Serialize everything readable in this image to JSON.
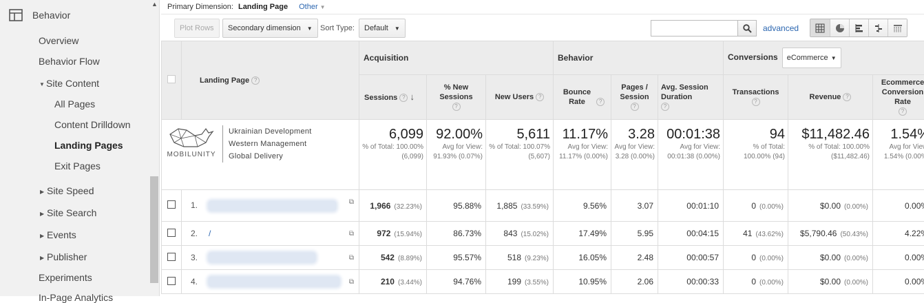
{
  "sidebar": {
    "section_title": "Behavior",
    "section_icon": "layout-icon",
    "items": [
      {
        "label": "Overview"
      },
      {
        "label": "Behavior Flow"
      },
      {
        "label": "Site Content"
      },
      {
        "label": "All Pages"
      },
      {
        "label": "Content Drilldown"
      },
      {
        "label": "Landing Pages"
      },
      {
        "label": "Exit Pages"
      },
      {
        "label": "Site Speed"
      },
      {
        "label": "Site Search"
      },
      {
        "label": "Events"
      },
      {
        "label": "Publisher"
      },
      {
        "label": "Experiments"
      },
      {
        "label": "In-Page Analytics"
      }
    ]
  },
  "primary_dimension": {
    "label": "Primary Dimension:",
    "value": "Landing Page",
    "other": "Other"
  },
  "toolbar": {
    "plot_rows": "Plot Rows",
    "secondary_dimension": "Secondary dimension",
    "sort_type_label": "Sort Type:",
    "sort_type_value": "Default",
    "search_placeholder": "",
    "advanced": "advanced",
    "view_icons": [
      "table-icon",
      "pie-icon",
      "bar-icon",
      "comparison-icon",
      "pivot-icon"
    ]
  },
  "table": {
    "groups": {
      "acquisition": "Acquisition",
      "behavior": "Behavior",
      "conversions": "Conversions",
      "conversion_select": "eCommerce"
    },
    "headers": {
      "landing_page": "Landing Page",
      "sessions": "Sessions",
      "new_sessions": "% New Sessions",
      "new_users": "New Users",
      "bounce": "Bounce Rate",
      "pages": "Pages / Session",
      "duration": "Avg. Session Duration",
      "transactions": "Transactions",
      "revenue": "Revenue",
      "ecom_rate": "Ecommerce Conversion Rate"
    },
    "logo": {
      "wordmark": "MOBILUNITY",
      "lines": [
        "Ukrainian Development",
        "Western Management",
        "Global Delivery"
      ]
    },
    "totals": {
      "sessions": {
        "value": "6,099",
        "sub": "% of Total: 100.00% (6,099)"
      },
      "new_sessions": {
        "value": "92.00%",
        "sub": "Avg for View: 91.93% (0.07%)"
      },
      "new_users": {
        "value": "5,611",
        "sub": "% of Total: 100.07% (5,607)"
      },
      "bounce": {
        "value": "11.17%",
        "sub": "Avg for View: 11.17% (0.00%)"
      },
      "pages": {
        "value": "3.28",
        "sub": "Avg for View: 3.28 (0.00%)"
      },
      "duration": {
        "value": "00:01:38",
        "sub": "Avg for View: 00:01:38 (0.00%)"
      },
      "transactions": {
        "value": "94",
        "sub": "% of Total: 100.00% (94)"
      },
      "revenue": {
        "value": "$11,482.46",
        "sub": "% of Total: 100.00% ($11,482.46)"
      },
      "ecom_rate": {
        "value": "1.54%",
        "sub": "Avg for View: 1.54% (0.00%)"
      }
    },
    "rows": [
      {
        "n": "1.",
        "page": "",
        "sessions": "1,966",
        "sessions_pct": "(32.23%)",
        "new_sessions": "95.88%",
        "new_users": "1,885",
        "new_users_pct": "(33.59%)",
        "bounce": "9.56%",
        "pages": "3.07",
        "duration": "00:01:10",
        "transactions": "0",
        "transactions_pct": "(0.00%)",
        "revenue": "$0.00",
        "revenue_pct": "(0.00%)",
        "ecom_rate": "0.00%"
      },
      {
        "n": "2.",
        "page": "/",
        "sessions": "972",
        "sessions_pct": "(15.94%)",
        "new_sessions": "86.73%",
        "new_users": "843",
        "new_users_pct": "(15.02%)",
        "bounce": "17.49%",
        "pages": "5.95",
        "duration": "00:04:15",
        "transactions": "41",
        "transactions_pct": "(43.62%)",
        "revenue": "$5,790.46",
        "revenue_pct": "(50.43%)",
        "ecom_rate": "4.22%"
      },
      {
        "n": "3.",
        "page": "",
        "sessions": "542",
        "sessions_pct": "(8.89%)",
        "new_sessions": "95.57%",
        "new_users": "518",
        "new_users_pct": "(9.23%)",
        "bounce": "16.05%",
        "pages": "2.48",
        "duration": "00:00:57",
        "transactions": "0",
        "transactions_pct": "(0.00%)",
        "revenue": "$0.00",
        "revenue_pct": "(0.00%)",
        "ecom_rate": "0.00%"
      },
      {
        "n": "4.",
        "page": "",
        "sessions": "210",
        "sessions_pct": "(3.44%)",
        "new_sessions": "94.76%",
        "new_users": "199",
        "new_users_pct": "(3.55%)",
        "bounce": "10.95%",
        "pages": "2.06",
        "duration": "00:00:33",
        "transactions": "0",
        "transactions_pct": "(0.00%)",
        "revenue": "$0.00",
        "revenue_pct": "(0.00%)",
        "ecom_rate": "0.00%"
      }
    ]
  },
  "colors": {
    "link": "#2b66b0",
    "header_bg": "#ececec",
    "sidebar_bg": "#f1f1f1"
  }
}
